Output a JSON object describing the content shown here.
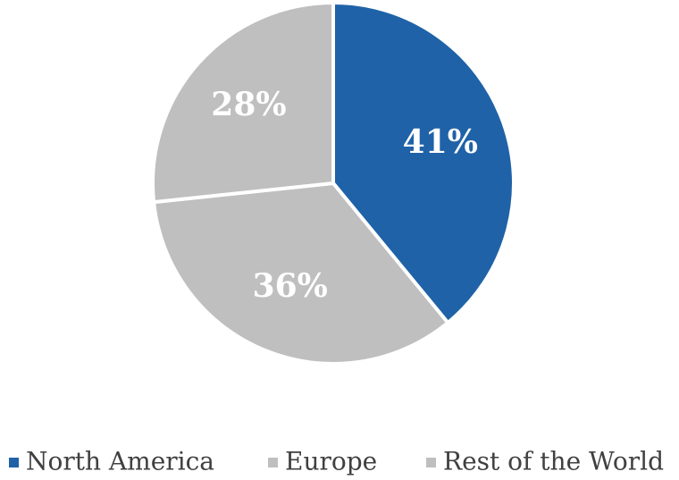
{
  "chart_data": {
    "type": "pie",
    "categories": [
      "North America",
      "Europe",
      "Rest of the World"
    ],
    "values": [
      41,
      36,
      28
    ],
    "value_labels": [
      "41%",
      "36%",
      "28%"
    ],
    "colors": [
      "#1f62a7",
      "#bfbfbf",
      "#bfbfbf"
    ],
    "legend": "bottom"
  }
}
